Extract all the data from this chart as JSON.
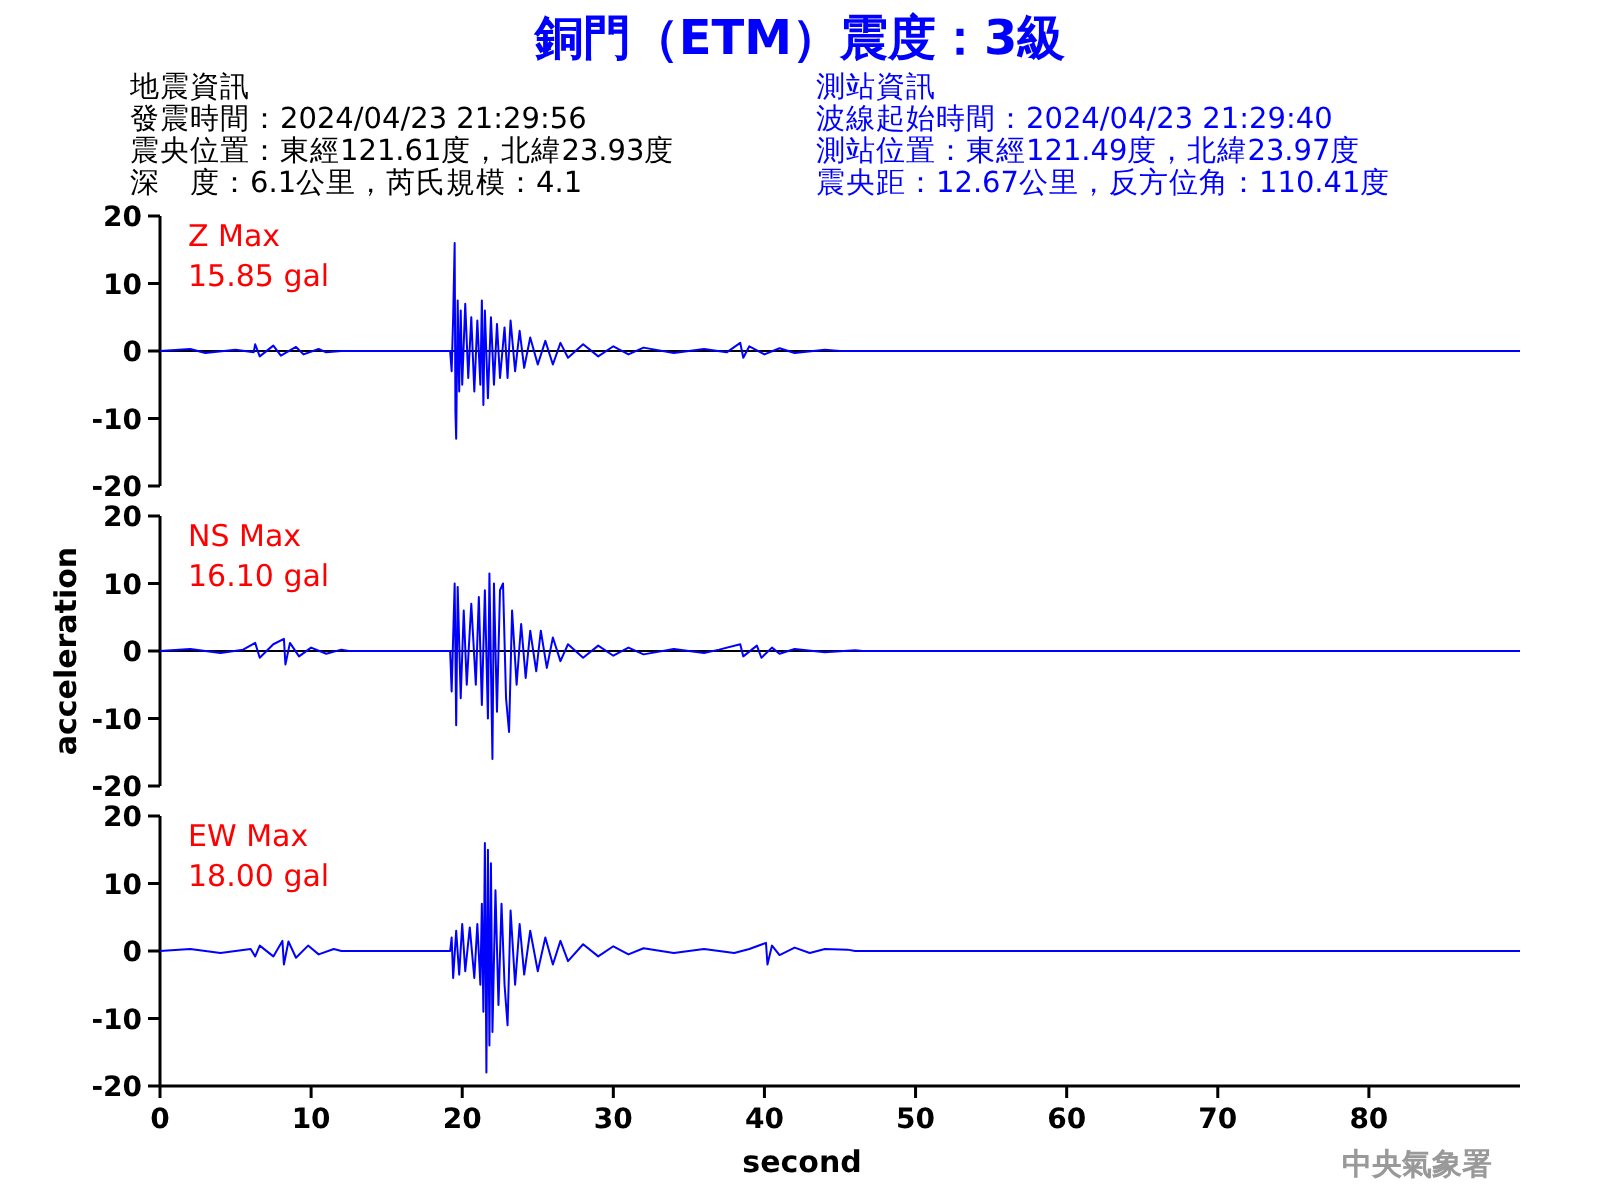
{
  "chart_data": [
    {
      "type": "line",
      "title": "銅門（ETM）震度：3級",
      "annotations": [
        "Z Max",
        "15.85 gal",
        "地震資訊",
        "發震時間：2024/04/23 21:29:56",
        "震央位置：東經121.61度，北緯23.93度",
        "深　度：6.1公里，芮氏規模：4.1",
        "測站資訊",
        "波線起始時間：2024/04/23 21:29:40",
        "測站位置：東經121.49度，北緯23.97度",
        "震央距：12.67公里，反方位角：110.41度"
      ],
      "xlim": [
        0,
        90
      ],
      "ylim": [
        -20,
        20
      ],
      "yticks": [
        -20,
        -10,
        0,
        10,
        20
      ],
      "tick_labels": "y",
      "series": [
        {
          "color": "#0000ff",
          "x": [
            0,
            2,
            3,
            5,
            6.2,
            6.3,
            6.6,
            7.5,
            8,
            9,
            9.5,
            10.5,
            11,
            12,
            19.2,
            19.3,
            19.4,
            19.5,
            19.55,
            19.6,
            19.7,
            19.8,
            19.9,
            20,
            20.2,
            20.4,
            20.6,
            20.8,
            21,
            21.2,
            21.3,
            21.4,
            21.5,
            21.7,
            21.9,
            22.1,
            22.3,
            22.5,
            22.8,
            23,
            23.2,
            23.5,
            23.8,
            24.1,
            24.5,
            25,
            25.5,
            26,
            26.5,
            27,
            28,
            29,
            30,
            31,
            32,
            34,
            36,
            37.5,
            38.4,
            38.6,
            39,
            40,
            41,
            42,
            44,
            45,
            90
          ],
          "values": [
            0,
            0.3,
            -0.3,
            0.2,
            -0.2,
            1.0,
            -0.8,
            0.8,
            -0.7,
            0.6,
            -0.5,
            0.3,
            -0.2,
            0,
            0,
            -3,
            5,
            16,
            -9,
            -13,
            7.5,
            -6,
            6,
            -5,
            7,
            -4,
            5,
            -6,
            4.5,
            -5,
            7.5,
            -8,
            6,
            -7,
            5,
            -5,
            4,
            -4,
            3.5,
            -4,
            4.5,
            -3,
            3,
            -2.5,
            2,
            -2,
            1.5,
            -2,
            1.2,
            -1,
            1,
            -0.8,
            0.7,
            -0.5,
            0.5,
            -0.3,
            0.3,
            -0.2,
            1.2,
            -1,
            0.7,
            -0.5,
            0.4,
            -0.3,
            0.2,
            0,
            0
          ]
        }
      ]
    },
    {
      "type": "line",
      "ylabel": "acceleration",
      "annotations": [
        "NS Max",
        "16.10 gal"
      ],
      "xlim": [
        0,
        90
      ],
      "ylim": [
        -20,
        20
      ],
      "yticks": [
        -20,
        -10,
        0,
        10,
        20
      ],
      "tick_labels": "y",
      "series": [
        {
          "color": "#0000ff",
          "x": [
            0,
            2,
            4,
            5.5,
            6.3,
            6.6,
            7.5,
            8.2,
            8.3,
            8.6,
            9.2,
            10,
            11,
            12,
            12.5,
            19.2,
            19.3,
            19.5,
            19.6,
            19.7,
            19.9,
            20.1,
            20.3,
            20.6,
            20.9,
            21.1,
            21.3,
            21.5,
            21.7,
            21.8,
            22,
            22.1,
            22.3,
            22.5,
            22.7,
            22.9,
            23.1,
            23.3,
            23.6,
            23.9,
            24.2,
            24.5,
            24.9,
            25.2,
            25.6,
            26,
            26.5,
            27,
            28,
            29,
            30,
            31,
            32,
            34,
            36,
            37,
            38.4,
            38.6,
            39.5,
            39.8,
            40.5,
            41,
            42,
            44,
            46,
            46.5,
            90
          ],
          "values": [
            0,
            0.3,
            -0.3,
            0.2,
            1.2,
            -1,
            1,
            1.8,
            -2,
            1.2,
            -0.8,
            0.5,
            -0.4,
            0.2,
            0,
            0,
            -6,
            10,
            -11,
            9.5,
            -7,
            6,
            -5,
            7,
            -5,
            8,
            -8,
            9,
            -10,
            11.5,
            -16,
            10,
            -9,
            9,
            10,
            -7,
            -12,
            6,
            -5,
            4,
            -4,
            3,
            -3,
            3,
            -2.5,
            2,
            -1.5,
            1,
            -1,
            0.8,
            -0.7,
            0.5,
            -0.5,
            0.3,
            -0.3,
            0.2,
            1,
            -0.8,
            0.8,
            -1,
            0.5,
            -0.4,
            0.3,
            -0.2,
            0.1,
            0,
            0
          ]
        }
      ]
    },
    {
      "type": "line",
      "xlabel": "second",
      "annotations": [
        "EW Max",
        "18.00 gal",
        "中央氣象署"
      ],
      "xlim": [
        0,
        90
      ],
      "xticks": [
        0,
        10,
        20,
        30,
        40,
        50,
        60,
        70,
        80
      ],
      "ylim": [
        -20,
        20
      ],
      "yticks": [
        -20,
        -10,
        0,
        10,
        20
      ],
      "grid": false,
      "series": [
        {
          "color": "#0000ff",
          "x": [
            0,
            2,
            4,
            6,
            6.3,
            6.6,
            7.5,
            8.1,
            8.2,
            8.5,
            9,
            9.8,
            10.5,
            11.5,
            12,
            19.2,
            19.3,
            19.4,
            19.6,
            19.8,
            20,
            20.2,
            20.5,
            20.8,
            21,
            21.2,
            21.3,
            21.4,
            21.5,
            21.6,
            21.7,
            21.8,
            21.9,
            22,
            22.2,
            22.4,
            22.6,
            22.8,
            23,
            23.2,
            23.5,
            23.8,
            24.1,
            24.5,
            25,
            25.5,
            26,
            26.5,
            27,
            28,
            29,
            30,
            31,
            32,
            34,
            36,
            38,
            39,
            40.1,
            40.2,
            40.5,
            41,
            42,
            43,
            44,
            45.5,
            46,
            90
          ],
          "values": [
            0,
            0.3,
            -0.3,
            0.3,
            -0.8,
            0.8,
            -0.8,
            1.5,
            -2,
            1.4,
            -1,
            0.8,
            -0.5,
            0.3,
            0,
            0,
            2,
            -4,
            3,
            -3.5,
            4,
            -3,
            3.5,
            -4,
            4,
            -5,
            7,
            -9,
            16,
            -18,
            15,
            -14,
            13,
            -12,
            9,
            -8,
            7,
            -5,
            -11,
            6,
            -5,
            4,
            -3.5,
            3,
            -3,
            2,
            -2,
            1.5,
            -1.5,
            1,
            -0.8,
            0.7,
            -0.5,
            0.4,
            -0.3,
            0.3,
            -0.3,
            0.3,
            1.2,
            -2,
            0.8,
            -0.6,
            0.5,
            -0.3,
            0.3,
            0.2,
            0,
            0
          ]
        }
      ]
    }
  ]
}
